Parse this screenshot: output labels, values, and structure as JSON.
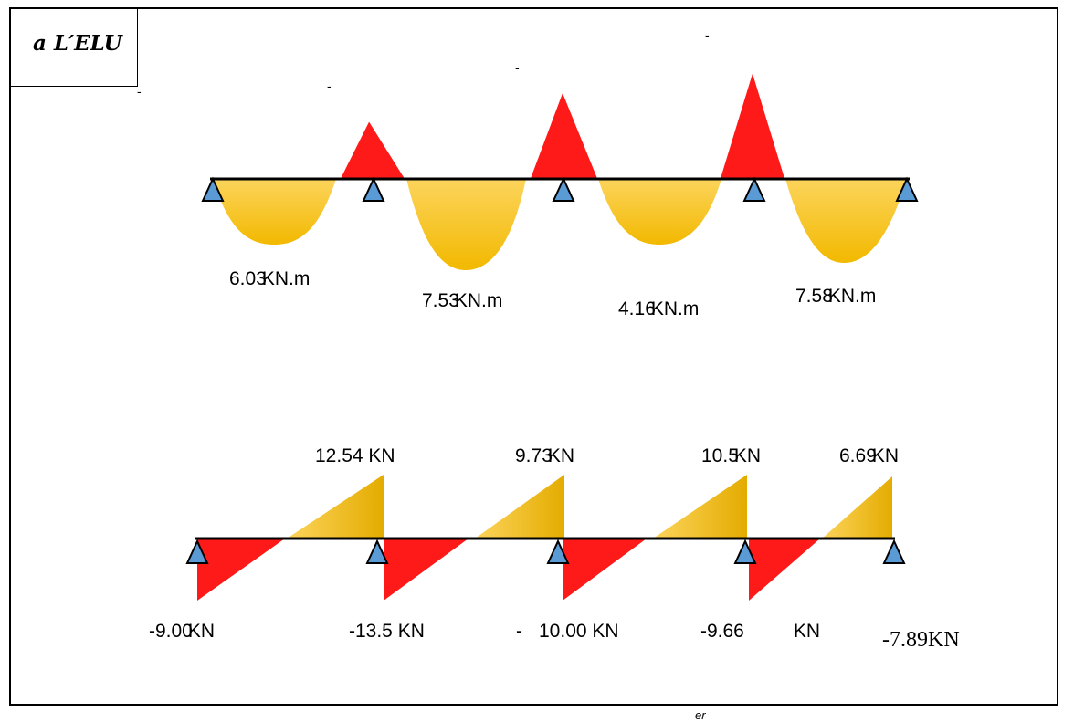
{
  "title": "a L′ELU",
  "colors": {
    "moment_fill": "#f7c300",
    "hogging_fill": "#ff1a1a",
    "support_fill": "#5b9bd5",
    "beam": "#000000"
  },
  "moment_diagram": {
    "span_labels": [
      {
        "value": "6.03",
        "unit": "KN.m"
      },
      {
        "value": "7.53",
        "unit": "KN.m"
      },
      {
        "value": "4.16",
        "unit": "KN.m"
      },
      {
        "value": "7.58",
        "unit": "KN.m"
      }
    ],
    "dash_marks": [
      "-",
      "-",
      "-",
      "-"
    ]
  },
  "shear_diagram": {
    "positive_labels": [
      {
        "value": "12.54",
        "unit": "KN"
      },
      {
        "value": "9.73",
        "unit": "KN"
      },
      {
        "value": "10.5",
        "unit": "KN"
      },
      {
        "value": "6.69",
        "unit": "KN"
      }
    ],
    "negative_labels": [
      {
        "value": "-9.00",
        "unit": "KN"
      },
      {
        "value": "-13.5",
        "unit": "KN"
      },
      {
        "value": "-",
        "unit": "10.00 KN"
      },
      {
        "value": "-9.66",
        "unit": "KN"
      }
    ],
    "end_label": "-7.89KN"
  },
  "footer_text": "er"
}
